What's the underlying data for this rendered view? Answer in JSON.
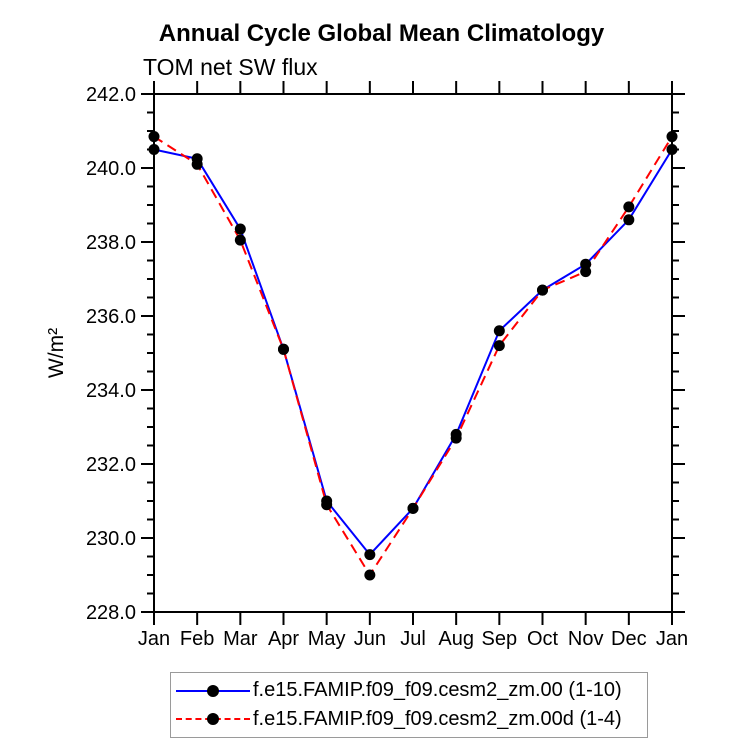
{
  "title": "Annual Cycle Global Mean Climatology",
  "subtitle": "TOM net SW flux",
  "y_axis_label": "W/m²",
  "colors": {
    "series1": "#0000ff",
    "series2": "#ff0000",
    "marker": "#000000",
    "axis": "#000000",
    "legend_border": "#9a9a9a"
  },
  "chart_data": {
    "type": "line",
    "title": "Annual Cycle Global Mean Climatology",
    "subtitle": "TOM net SW flux",
    "ylabel": "W/m²",
    "xlabel": "",
    "x_categories": [
      "Jan",
      "Feb",
      "Mar",
      "Apr",
      "May",
      "Jun",
      "Jul",
      "Aug",
      "Sep",
      "Oct",
      "Nov",
      "Dec",
      "Jan"
    ],
    "ylim": [
      228.0,
      242.0
    ],
    "ytick_interval": 2.0,
    "yminor_interval": 0.5,
    "grid": false,
    "legend_position": "bottom",
    "series": [
      {
        "name": "f.e15.FAMIP.f09_f09.cesm2_zm.00 (1-10)",
        "color": "#0000ff",
        "style": "solid",
        "marker": "circle",
        "values": [
          240.5,
          240.25,
          238.35,
          235.1,
          231.0,
          229.55,
          230.8,
          232.8,
          235.6,
          236.7,
          237.4,
          238.6,
          240.5
        ]
      },
      {
        "name": "f.e15.FAMIP.f09_f09.cesm2_zm.00d (1-4)",
        "color": "#ff0000",
        "style": "dashed",
        "marker": "circle",
        "values": [
          240.85,
          240.1,
          238.05,
          235.1,
          230.9,
          229.0,
          230.8,
          232.7,
          235.2,
          236.7,
          237.2,
          238.95,
          240.85
        ]
      }
    ]
  }
}
